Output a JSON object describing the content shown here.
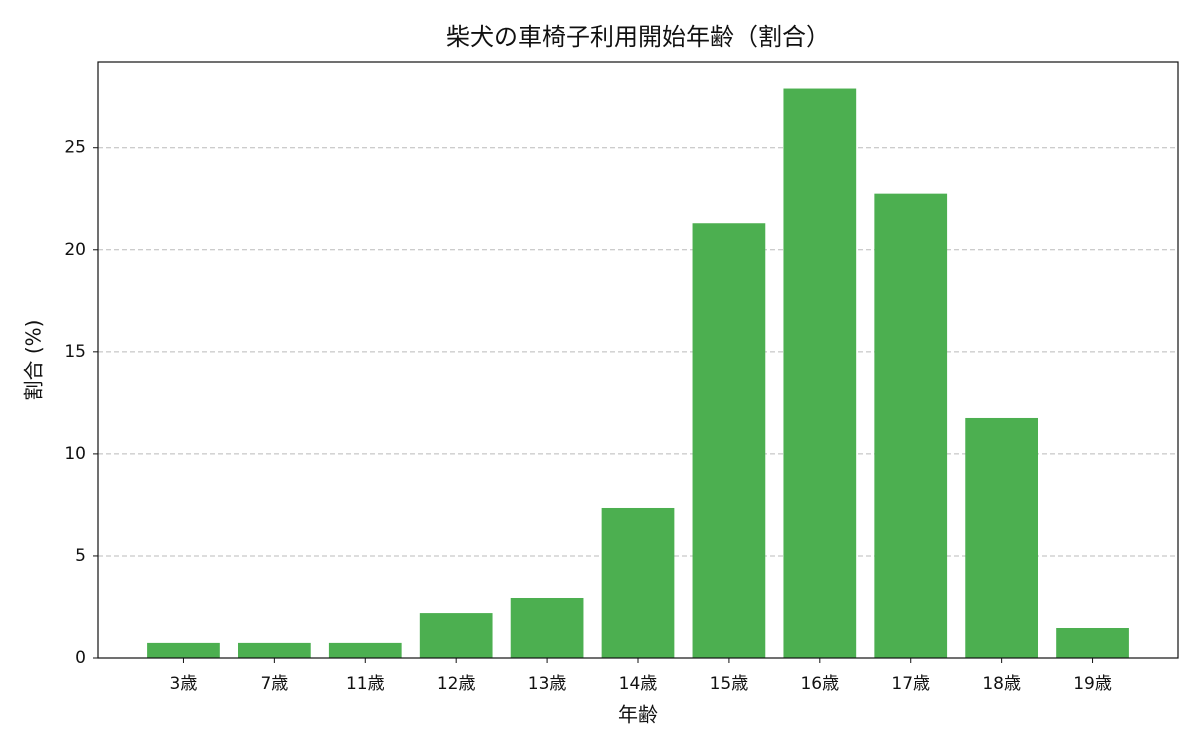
{
  "chart_data": {
    "type": "bar",
    "title": "柴犬の車椅子利用開始年齢（割合）",
    "x_label": "年齢",
    "y_label": "割合 (%)",
    "categories": [
      "3歳",
      "7歳",
      "11歳",
      "12歳",
      "13歳",
      "14歳",
      "15歳",
      "16歳",
      "17歳",
      "18歳",
      "19歳"
    ],
    "values": [
      0.74,
      0.74,
      0.74,
      2.2,
      2.94,
      7.35,
      21.3,
      27.9,
      22.75,
      11.76,
      1.47
    ],
    "color": "#4caf50",
    "ylim": [
      0,
      29.2
    ],
    "yticks": [
      0,
      5,
      10,
      15,
      20,
      25
    ],
    "grid": true
  }
}
